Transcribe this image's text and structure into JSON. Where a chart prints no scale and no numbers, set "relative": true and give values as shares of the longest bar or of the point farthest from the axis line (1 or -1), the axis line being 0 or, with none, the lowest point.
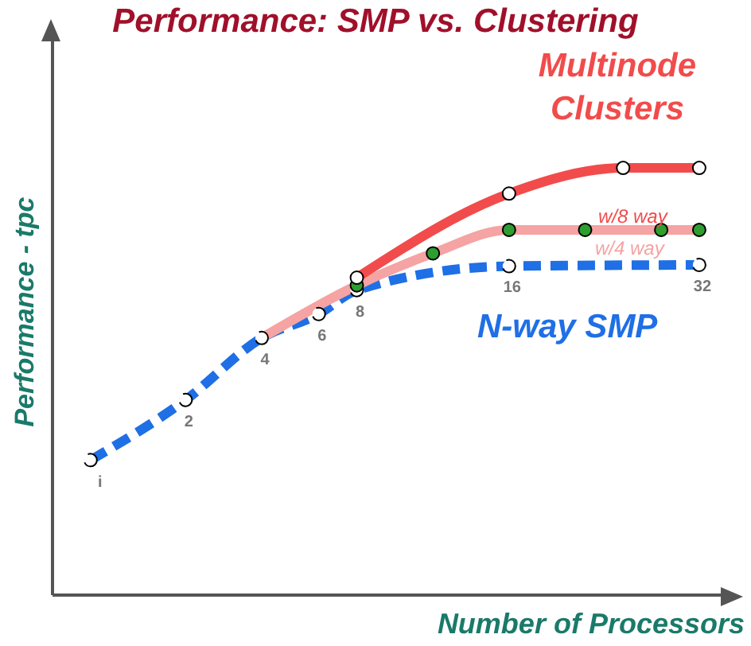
{
  "chart_data": {
    "type": "line",
    "title": "Performance: SMP vs. Clustering",
    "xlabel": "Number of Processors",
    "ylabel": "Performance - tpc",
    "relative": true,
    "categories": [
      "i",
      null,
      null,
      null,
      null,
      "2",
      null,
      null,
      null,
      "4",
      null,
      null,
      "6",
      null,
      "8",
      null,
      null,
      null,
      null,
      null,
      null,
      null,
      "16",
      null,
      null,
      null,
      null,
      null,
      null,
      null,
      null,
      null,
      "32"
    ],
    "annotations": [
      "Multinode Clusters"
    ],
    "series": [
      {
        "name": "N-way SMP",
        "color": "#1f6fe6",
        "line_style": "dashed",
        "marker": "circle",
        "values": [
          0.316,
          null,
          null,
          null,
          null,
          0.457,
          null,
          null,
          null,
          0.602,
          null,
          null,
          0.658,
          null,
          0.714,
          null,
          null,
          null,
          null,
          null,
          null,
          null,
          0.77,
          null,
          null,
          null,
          null,
          null,
          null,
          null,
          null,
          null,
          0.773
        ]
      },
      {
        "name": "w/4 way",
        "color": "#f5a3a3",
        "line_style": "solid",
        "marker": "none",
        "values": [
          null,
          null,
          null,
          null,
          null,
          null,
          null,
          null,
          null,
          0.602,
          null,
          null,
          null,
          null,
          0.725,
          null,
          null,
          null,
          0.8,
          null,
          null,
          null,
          0.855,
          null,
          null,
          null,
          0.855,
          null,
          null,
          null,
          0.855,
          null,
          0.855
        ]
      },
      {
        "type": "scatter",
        "color": "#2e9e2e",
        "values": [
          null,
          null,
          null,
          null,
          null,
          null,
          null,
          null,
          null,
          null,
          null,
          null,
          null,
          null,
          0.725,
          null,
          null,
          null,
          0.8,
          null,
          null,
          null,
          0.855,
          null,
          null,
          null,
          0.855,
          null,
          null,
          null,
          0.855,
          null,
          0.855
        ]
      },
      {
        "name": "w/8 way",
        "color": "#f24b4b",
        "line_style": "solid",
        "marker": "circle",
        "values": [
          null,
          null,
          null,
          null,
          null,
          null,
          null,
          null,
          null,
          null,
          null,
          null,
          null,
          null,
          0.743,
          null,
          null,
          null,
          null,
          null,
          null,
          null,
          0.94,
          null,
          null,
          null,
          null,
          null,
          1,
          null,
          null,
          null,
          1
        ]
      }
    ]
  }
}
